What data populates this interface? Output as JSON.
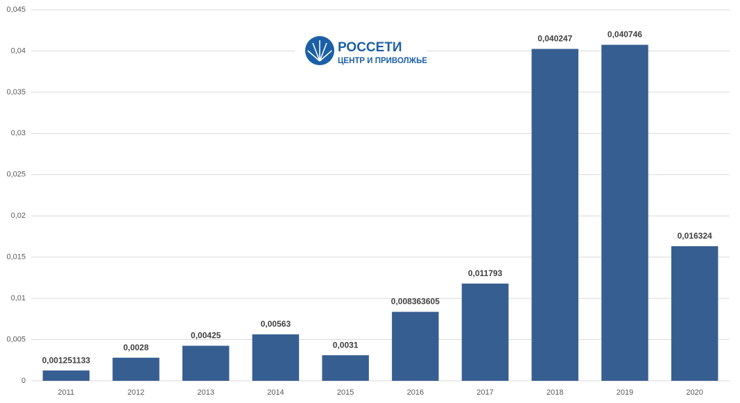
{
  "chart_data": {
    "type": "bar",
    "categories": [
      "2011",
      "2012",
      "2013",
      "2014",
      "2015",
      "2016",
      "2017",
      "2018",
      "2019",
      "2020"
    ],
    "values": [
      0.001251133,
      0.0028,
      0.00425,
      0.00563,
      0.0031,
      0.008363605,
      0.011793,
      0.040247,
      0.040746,
      0.016324
    ],
    "value_labels": [
      "0,001251133",
      "0,0028",
      "0,00425",
      "0,00563",
      "0,0031",
      "0,008363605",
      "0,011793",
      "0,040247",
      "0,040746",
      "0,016324"
    ],
    "color": "#375e91",
    "ylim": [
      0,
      0.045
    ],
    "yticks": [
      0,
      {
        "value": 0.005,
        "label": "0,005"
      },
      {
        "value": 0.01,
        "label": "0,01"
      },
      {
        "value": 0.015,
        "label": "0,015"
      },
      {
        "value": 0.02,
        "label": "0,02"
      },
      {
        "value": 0.025,
        "label": "0,025"
      },
      {
        "value": 0.03,
        "label": "0,03"
      },
      {
        "value": 0.035,
        "label": "0,035"
      },
      {
        "value": 0.04,
        "label": "0,04"
      },
      {
        "value": 0.045,
        "label": "0,045"
      }
    ],
    "grid": true,
    "logo": {
      "name": "РОССЕТИ",
      "subtitle": "ЦЕНТР И ПРИВОЛЖЬЕ"
    }
  }
}
